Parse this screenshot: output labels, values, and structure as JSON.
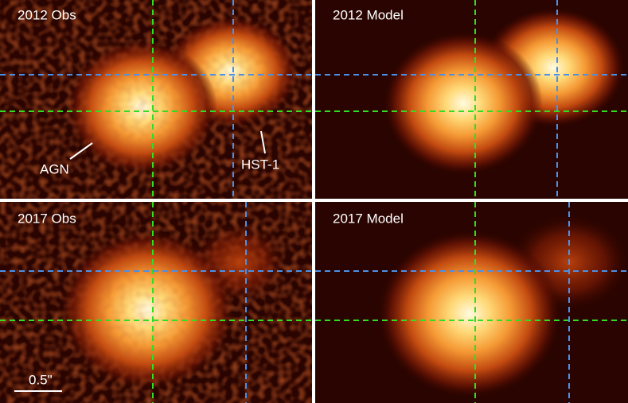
{
  "panels": [
    {
      "title": "2012 Obs"
    },
    {
      "title": "2012 Model"
    },
    {
      "title": "2017 Obs"
    },
    {
      "title": "2017 Model"
    }
  ],
  "annotations": {
    "agn": "AGN",
    "hst1": "HST-1",
    "scale_bar": "0.5\""
  }
}
